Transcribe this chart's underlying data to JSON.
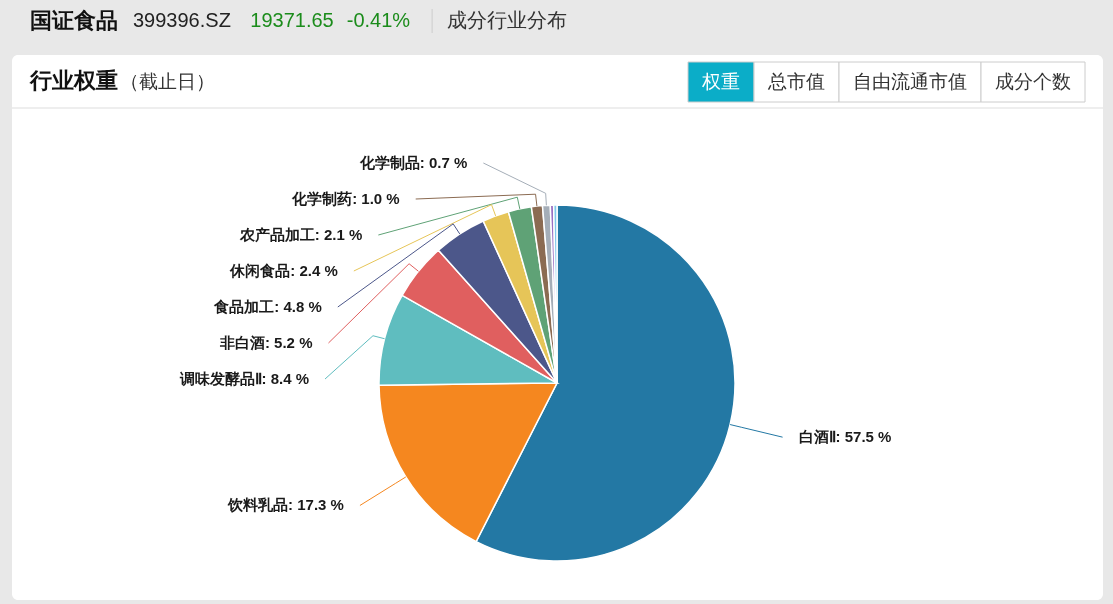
{
  "chart_data": {
    "type": "pie",
    "title": "行业权重",
    "subtitle": "（截止日）",
    "categories": [
      "白酒Ⅱ",
      "饮料乳品",
      "调味发酵品Ⅱ",
      "非白酒",
      "食品加工",
      "休闲食品",
      "农产品加工",
      "化学制药",
      "化学制品",
      null,
      null
    ],
    "values": [
      57.5,
      17.3,
      8.4,
      5.2,
      4.8,
      2.4,
      2.1,
      1.0,
      0.7,
      0.3,
      0.3
    ],
    "value_labels": [
      "57.5 %",
      "17.3 %",
      "8.4 %",
      "5.2 %",
      "4.8 %",
      "2.4 %",
      "2.1 %",
      "1.0 %",
      "0.7 %",
      null,
      null
    ],
    "colors": [
      "#2378a4",
      "#f5871f",
      "#5fbdbf",
      "#e05f5f",
      "#4c578a",
      "#e6c558",
      "#5fa276",
      "#8b6b52",
      "#a5aeb8",
      "#9a6fc2",
      "#80c8ea"
    ],
    "annotations": [
      "国证食品",
      "399396.SZ",
      "19371.65",
      "-0.41%",
      "成分行业分布",
      "权重",
      "总市值",
      "自由流通市值",
      "成分个数"
    ]
  }
}
